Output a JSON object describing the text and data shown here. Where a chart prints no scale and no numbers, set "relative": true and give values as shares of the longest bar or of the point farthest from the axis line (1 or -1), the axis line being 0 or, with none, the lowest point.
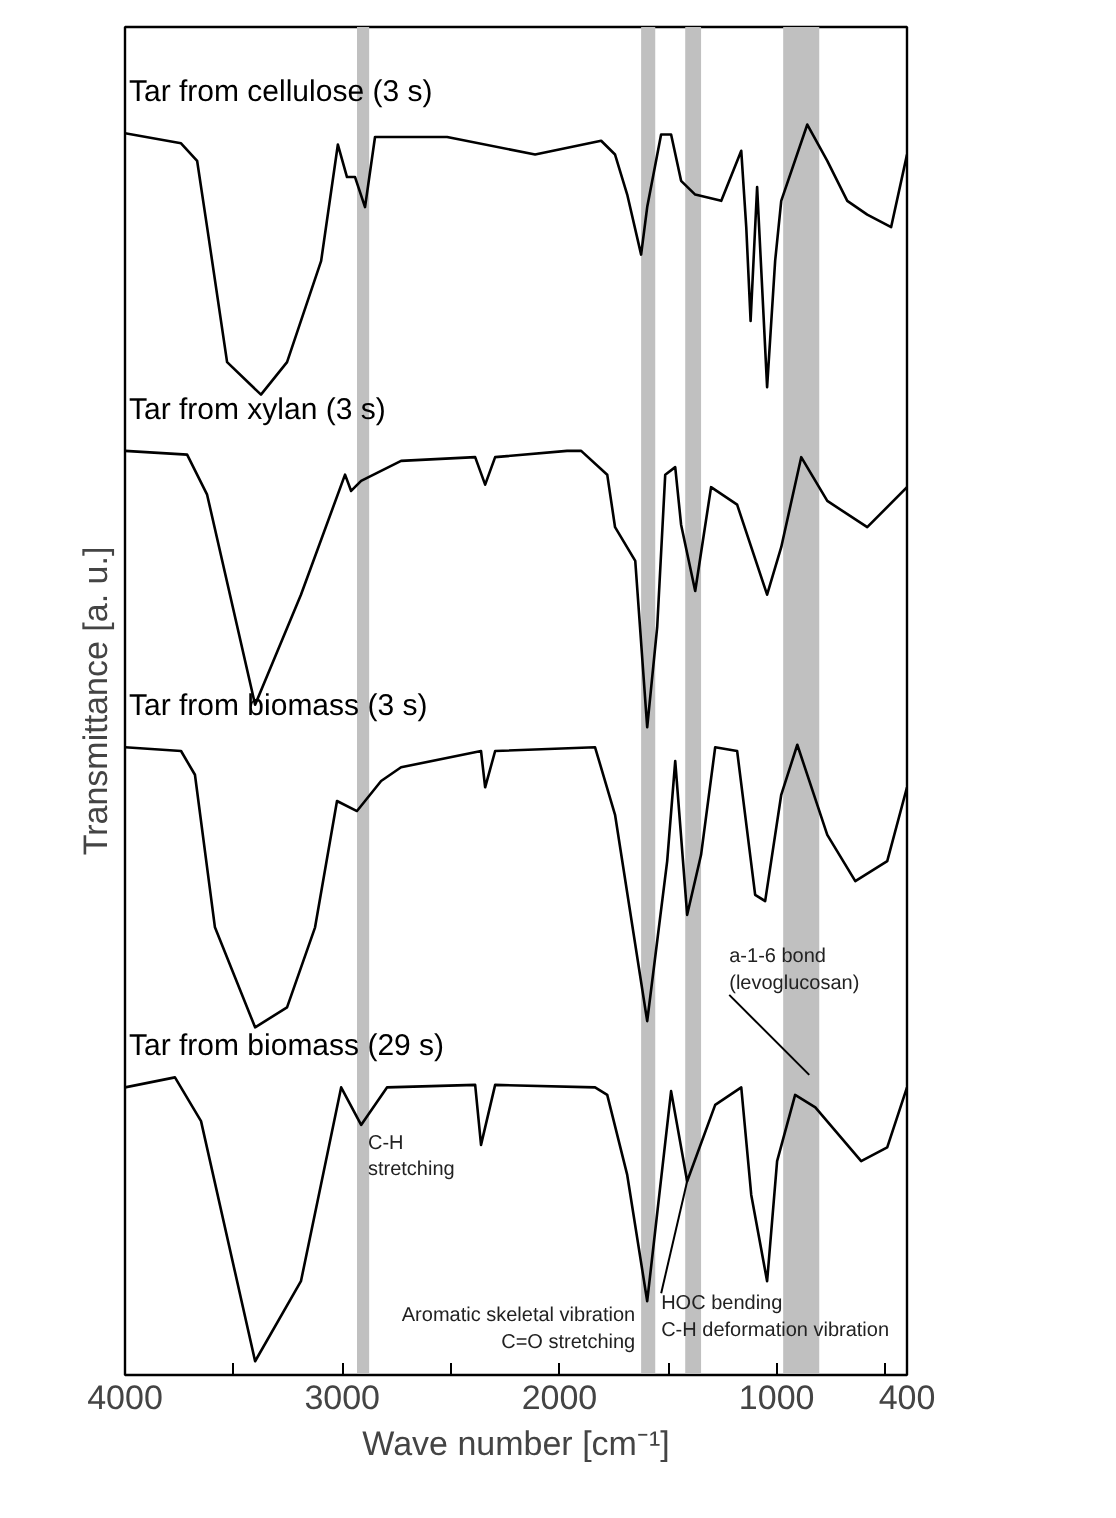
{
  "chart_data": {
    "type": "line",
    "relative": true,
    "xlabel": "Wave number [cm⁻¹]",
    "ylabel": "Transmittance [a. u.]",
    "xlim": [
      4000,
      400
    ],
    "xticks": [
      4000,
      {
        "value": 3500,
        "label": null
      },
      3000,
      {
        "value": 2500,
        "label": null
      },
      2000,
      {
        "value": 1500,
        "label": null
      },
      1000,
      {
        "value": 500,
        "label": null
      },
      400
    ],
    "grid": false,
    "legend": false,
    "marker": "none",
    "line_style": "solid",
    "series": [
      {
        "name": "Tar from cellulose (3 s)",
        "color": "#000000",
        "x": [
          4000,
          3742,
          3668,
          3622,
          3530,
          3374,
          3254,
          3097,
          3020,
          2978,
          2941,
          2895,
          2849,
          2517,
          2112,
          1808,
          1744,
          1688,
          1624,
          1596,
          1532,
          1486,
          1440,
          1375,
          1255,
          1163,
          1140,
          1120,
          1090,
          1044,
          1007,
          979,
          859,
          767,
          675,
          583,
          473,
          400
        ],
        "values": [
          0.993,
          0.985,
          0.971,
          0.918,
          0.81,
          0.784,
          0.81,
          0.891,
          0.984,
          0.958,
          0.958,
          0.934,
          0.99,
          0.99,
          0.976,
          0.987,
          0.976,
          0.944,
          0.896,
          0.934,
          0.992,
          0.992,
          0.955,
          0.944,
          0.939,
          0.979,
          0.918,
          0.843,
          0.95,
          0.79,
          0.891,
          0.939,
          1.0,
          0.971,
          0.939,
          0.928,
          0.918,
          0.976
        ]
      },
      {
        "name": "Tar from xylan (3 s)",
        "color": "#000000",
        "x": [
          4000,
          3714,
          3622,
          3401,
          3190,
          2987,
          2959,
          2913,
          2729,
          2388,
          2342,
          2296,
          1965,
          1900,
          1780,
          1744,
          1651,
          1596,
          1550,
          1513,
          1467,
          1440,
          1375,
          1302,
          1182,
          1044,
          979,
          887,
          767,
          583,
          400
        ],
        "values": [
          0.739,
          0.736,
          0.704,
          0.536,
          0.624,
          0.72,
          0.707,
          0.715,
          0.731,
          0.734,
          0.712,
          0.734,
          0.739,
          0.739,
          0.72,
          0.678,
          0.651,
          0.518,
          0.598,
          0.72,
          0.726,
          0.68,
          0.627,
          0.71,
          0.696,
          0.624,
          0.662,
          0.734,
          0.699,
          0.678,
          0.71
        ]
      },
      {
        "name": "Tar from biomass (3 s)",
        "color": "#000000",
        "x": [
          4000,
          3742,
          3678,
          3586,
          3401,
          3254,
          3125,
          3024,
          2932,
          2821,
          2729,
          2361,
          2342,
          2296,
          1836,
          1744,
          1596,
          1504,
          1467,
          1412,
          1348,
          1283,
          1182,
          1099,
          1053,
          979,
          905,
          767,
          638,
          491,
          400
        ],
        "values": [
          0.502,
          0.499,
          0.48,
          0.358,
          0.278,
          0.294,
          0.358,
          0.459,
          0.451,
          0.475,
          0.486,
          0.499,
          0.47,
          0.499,
          0.502,
          0.448,
          0.283,
          0.411,
          0.491,
          0.368,
          0.416,
          0.502,
          0.499,
          0.384,
          0.379,
          0.464,
          0.504,
          0.432,
          0.395,
          0.411,
          0.47
        ]
      },
      {
        "name": "Tar from biomass (29 s)",
        "color": "#000000",
        "x": [
          4000,
          3770,
          3650,
          3401,
          3190,
          3005,
          2913,
          2794,
          2388,
          2361,
          2296,
          1836,
          1780,
          1688,
          1596,
          1486,
          1412,
          1283,
          1163,
          1117,
          1044,
          998,
          915,
          822,
          611,
          491,
          400
        ],
        "values": [
          0.23,
          0.238,
          0.203,
          0.011,
          0.075,
          0.23,
          0.2,
          0.23,
          0.232,
          0.184,
          0.232,
          0.23,
          0.224,
          0.16,
          0.059,
          0.227,
          0.155,
          0.216,
          0.23,
          0.144,
          0.075,
          0.171,
          0.224,
          0.214,
          0.171,
          0.182,
          0.23
        ]
      }
    ],
    "bands": [
      {
        "axis": "x",
        "from": 2932,
        "to": 2876,
        "color": "#c0c0c0"
      },
      {
        "axis": "x",
        "from": 1624,
        "to": 1559,
        "color": "#c0c0c0"
      },
      {
        "axis": "x",
        "from": 1421,
        "to": 1348,
        "color": "#c0c0c0"
      },
      {
        "axis": "x",
        "from": 970,
        "to": 804,
        "color": "#c0c0c0"
      }
    ],
    "annotations": [
      {
        "text": "C-H\nstretching",
        "x": 2900,
        "y": 0.2
      },
      {
        "text": "Aromatic skeletal vibration\nC=O stretching",
        "x": 1596,
        "y": 0.059
      },
      {
        "text": "HOC bending\nC-H deformation vibration",
        "x": 1412,
        "y": 0.155
      },
      {
        "text": "a-1-6 bond\n(levoglucosan)",
        "x": 850,
        "y": 0.24
      }
    ]
  }
}
